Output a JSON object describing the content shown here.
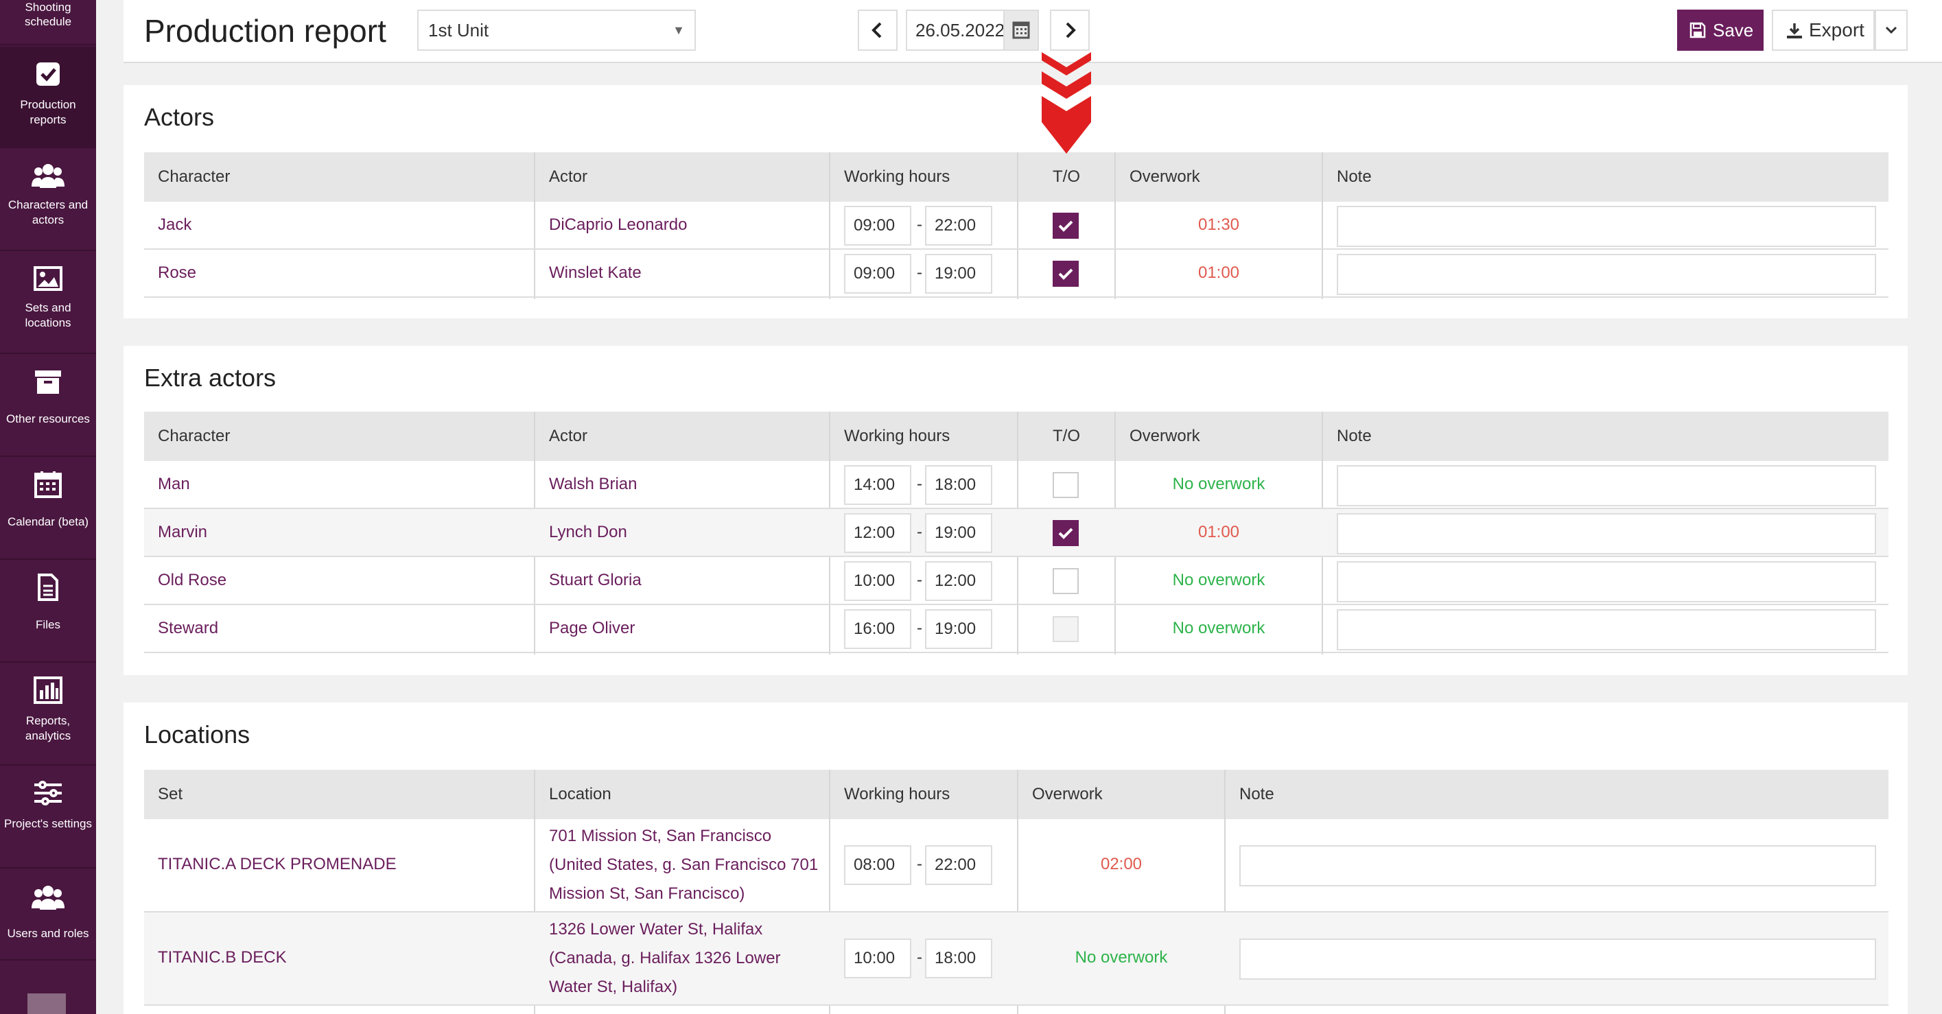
{
  "sidebar": {
    "items": [
      {
        "label": "Shooting schedule",
        "icon": "calendar-list-icon"
      },
      {
        "label": "Production reports",
        "icon": "check-square-icon"
      },
      {
        "label": "Characters and actors",
        "icon": "users-icon"
      },
      {
        "label": "Sets and locations",
        "icon": "image-icon"
      },
      {
        "label": "Other resources",
        "icon": "archive-box-icon"
      },
      {
        "label": "Calendar (beta)",
        "icon": "calendar-grid-icon"
      },
      {
        "label": "Files",
        "icon": "file-icon"
      },
      {
        "label": "Reports, analytics",
        "icon": "bar-chart-icon"
      },
      {
        "label": "Project's settings",
        "icon": "sliders-icon"
      },
      {
        "label": "Users and roles",
        "icon": "users-icon"
      }
    ],
    "active_index": 1
  },
  "header": {
    "title": "Production report",
    "unit_select": "1st Unit",
    "date": "26.05.2022",
    "save_label": "Save",
    "export_label": "Export"
  },
  "actors": {
    "title": "Actors",
    "columns": [
      "Character",
      "Actor",
      "Working hours",
      "T/O",
      "Overwork",
      "Note"
    ],
    "rows": [
      {
        "character": "Jack",
        "actor": "DiCaprio Leonardo",
        "from": "09:00",
        "to": "22:00",
        "to_checked": true,
        "overwork": "01:30",
        "overwork_status": "red",
        "note": ""
      },
      {
        "character": "Rose",
        "actor": "Winslet Kate",
        "from": "09:00",
        "to": "19:00",
        "to_checked": true,
        "overwork": "01:00",
        "overwork_status": "red",
        "note": ""
      }
    ]
  },
  "extras": {
    "title": "Extra actors",
    "columns": [
      "Character",
      "Actor",
      "Working hours",
      "T/O",
      "Overwork",
      "Note"
    ],
    "rows": [
      {
        "character": "Man",
        "actor": "Walsh Brian",
        "from": "14:00",
        "to": "18:00",
        "to_checked": false,
        "overwork": "No overwork",
        "overwork_status": "green",
        "note": ""
      },
      {
        "character": "Marvin",
        "actor": "Lynch Don",
        "from": "12:00",
        "to": "19:00",
        "to_checked": true,
        "overwork": "01:00",
        "overwork_status": "red",
        "note": ""
      },
      {
        "character": "Old Rose",
        "actor": "Stuart Gloria",
        "from": "10:00",
        "to": "12:00",
        "to_checked": false,
        "overwork": "No overwork",
        "overwork_status": "green",
        "note": ""
      },
      {
        "character": "Steward",
        "actor": "Page Oliver",
        "from": "16:00",
        "to": "19:00",
        "to_checked": false,
        "to_disabled": true,
        "overwork": "No overwork",
        "overwork_status": "green",
        "note": ""
      }
    ]
  },
  "locations": {
    "title": "Locations",
    "columns": [
      "Set",
      "Location",
      "Working hours",
      "Overwork",
      "Note"
    ],
    "rows": [
      {
        "set": "TITANIC.A DECK PROMENADE",
        "location_lines": [
          "701 Mission St, San Francisco",
          "(United States, g. San Francisco 701",
          "Mission St, San Francisco)"
        ],
        "from": "08:00",
        "to": "22:00",
        "overwork": "02:00",
        "overwork_status": "red",
        "note": ""
      },
      {
        "set": "TITANIC.B DECK",
        "location_lines": [
          "1326 Lower Water St, Halifax",
          "(Canada, g. Halifax 1326 Lower",
          "Water St, Halifax)"
        ],
        "from": "10:00",
        "to": "18:00",
        "overwork": "No overwork",
        "overwork_status": "green",
        "note": ""
      }
    ]
  },
  "separator": "-",
  "colors": {
    "sidebar": "#4a1740",
    "accent": "#6a1e5c",
    "overwork_red": "#e05a4e",
    "no_overwork_green": "#2db34a",
    "annotation_arrow": "#e02020"
  }
}
